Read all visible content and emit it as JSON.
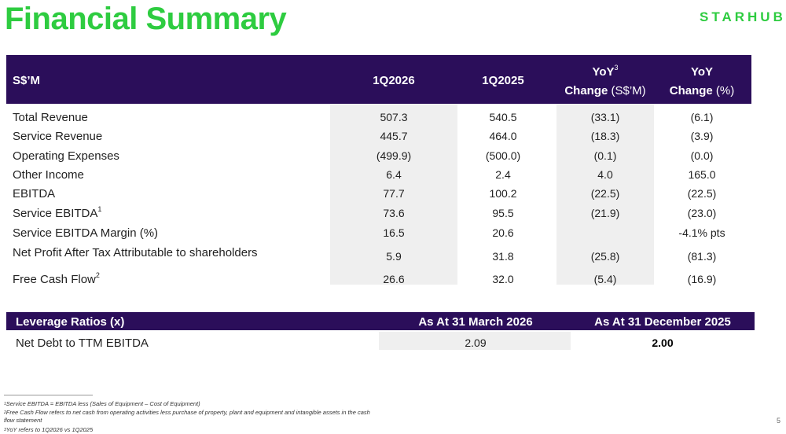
{
  "header": {
    "title": "Financial Summary",
    "brand": "STARHUB"
  },
  "table": {
    "columns": [
      {
        "text": "S$’M"
      },
      {
        "text": "1Q2026"
      },
      {
        "text": "1Q2025"
      },
      {
        "line1": "YoY",
        "note": "3",
        "line2": "Change",
        "unit": "(S$’M)"
      },
      {
        "line1": "YoY",
        "line2": "Change",
        "unit": "(%)"
      }
    ],
    "rows": [
      {
        "label": "Total Revenue",
        "cells": [
          "507.3",
          "540.5",
          "(33.1)",
          "(6.1)"
        ]
      },
      {
        "label": "Service Revenue",
        "cells": [
          "445.7",
          "464.0",
          "(18.3)",
          "(3.9)"
        ]
      },
      {
        "label": "Operating Expenses",
        "cells": [
          "(499.9)",
          "(500.0)",
          "(0.1)",
          "(0.0)"
        ]
      },
      {
        "label": "Other Income",
        "cells": [
          "6.4",
          "2.4",
          "4.0",
          "165.0"
        ]
      },
      {
        "label": "EBITDA",
        "cells": [
          "77.7",
          "100.2",
          "(22.5)",
          "(22.5)"
        ]
      },
      {
        "label": "Service EBITDA",
        "note": "1",
        "cells": [
          "73.6",
          "95.5",
          "(21.9)",
          "(23.0)"
        ]
      },
      {
        "label": "Service EBITDA Margin (%)",
        "cells": [
          "16.5",
          "20.6",
          null,
          "-4.1% pts"
        ]
      },
      {
        "label": "Net Profit After Tax Attributable to shareholders",
        "cells": [
          "5.9",
          "31.8",
          "(25.8)",
          "(81.3)"
        ]
      },
      {
        "label": "Free Cash Flow",
        "note": "2",
        "cells": [
          "26.6",
          "32.0",
          "(5.4)",
          "(16.9)"
        ]
      }
    ]
  },
  "leverage": {
    "columns": [
      "Leverage Ratios (x)",
      "As At 31 March 2026",
      "As At 31 December 2025"
    ],
    "rows": [
      {
        "label": "Net Debt to TTM EBITDA",
        "cells": [
          "2.09",
          "2.00"
        ]
      }
    ]
  },
  "footnotes": [
    {
      "mark": "1",
      "text": "Service EBITDA = EBITDA less (Sales of Equipment – Cost of Equipment)"
    },
    {
      "mark": "2",
      "text": "Free Cash Flow refers to net cash from operating activities less purchase of property, plant and equipment and intangible assets in the cash flow statement"
    },
    {
      "mark": "3",
      "text": "YoY refers to 1Q2026 vs 1Q2025"
    }
  ],
  "page_number": "5"
}
